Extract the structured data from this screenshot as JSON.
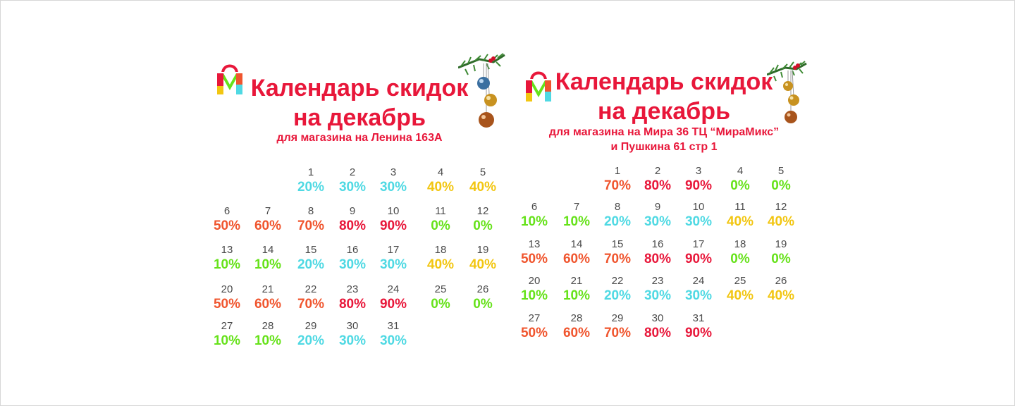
{
  "colors": {
    "title": "#e8173a",
    "d0": "#66e21a",
    "d10": "#66e21a",
    "d20": "#4fd9e3",
    "d30": "#4fd9e3",
    "d40": "#f2c611",
    "d50": "#f0552e",
    "d60": "#f0552e",
    "d70": "#f0552e",
    "d80": "#e8173a",
    "d90": "#e8173a"
  },
  "left_calendar": {
    "title_line1": "Календарь скидок",
    "title_line2": "на декабрь",
    "subtitle_line1": "для магазина на Ленина 163А",
    "logo_icon": "shopping-bag-logo",
    "decoration_icon": "christmas-ornaments",
    "days": [
      {
        "day": "1",
        "discount": "20%"
      },
      {
        "day": "2",
        "discount": "30%"
      },
      {
        "day": "3",
        "discount": "30%"
      },
      {
        "day": "4",
        "discount": "40%"
      },
      {
        "day": "5",
        "discount": "40%"
      },
      {
        "day": "6",
        "discount": "50%"
      },
      {
        "day": "7",
        "discount": "60%"
      },
      {
        "day": "8",
        "discount": "70%"
      },
      {
        "day": "9",
        "discount": "80%"
      },
      {
        "day": "10",
        "discount": "90%"
      },
      {
        "day": "11",
        "discount": "0%"
      },
      {
        "day": "12",
        "discount": "0%"
      },
      {
        "day": "13",
        "discount": "10%"
      },
      {
        "day": "14",
        "discount": "10%"
      },
      {
        "day": "15",
        "discount": "20%"
      },
      {
        "day": "16",
        "discount": "30%"
      },
      {
        "day": "17",
        "discount": "30%"
      },
      {
        "day": "18",
        "discount": "40%"
      },
      {
        "day": "19",
        "discount": "40%"
      },
      {
        "day": "20",
        "discount": "50%"
      },
      {
        "day": "21",
        "discount": "60%"
      },
      {
        "day": "22",
        "discount": "70%"
      },
      {
        "day": "23",
        "discount": "80%"
      },
      {
        "day": "24",
        "discount": "90%"
      },
      {
        "day": "25",
        "discount": "0%"
      },
      {
        "day": "26",
        "discount": "0%"
      },
      {
        "day": "27",
        "discount": "10%"
      },
      {
        "day": "28",
        "discount": "10%"
      },
      {
        "day": "29",
        "discount": "20%"
      },
      {
        "day": "30",
        "discount": "30%"
      },
      {
        "day": "31",
        "discount": "30%"
      }
    ]
  },
  "right_calendar": {
    "title_line1": "Календарь скидок",
    "title_line2": "на декабрь",
    "subtitle_line1": "для магазина на Мира 36 ТЦ “МираМикс”",
    "subtitle_line2": "и Пушкина 61 стр 1",
    "logo_icon": "shopping-bag-logo",
    "decoration_icon": "christmas-ornaments",
    "days": [
      {
        "day": "1",
        "discount": "70%"
      },
      {
        "day": "2",
        "discount": "80%"
      },
      {
        "day": "3",
        "discount": "90%"
      },
      {
        "day": "4",
        "discount": "0%"
      },
      {
        "day": "5",
        "discount": "0%"
      },
      {
        "day": "6",
        "discount": "10%"
      },
      {
        "day": "7",
        "discount": "10%"
      },
      {
        "day": "8",
        "discount": "20%"
      },
      {
        "day": "9",
        "discount": "30%"
      },
      {
        "day": "10",
        "discount": "30%"
      },
      {
        "day": "11",
        "discount": "40%"
      },
      {
        "day": "12",
        "discount": "40%"
      },
      {
        "day": "13",
        "discount": "50%"
      },
      {
        "day": "14",
        "discount": "60%"
      },
      {
        "day": "15",
        "discount": "70%"
      },
      {
        "day": "16",
        "discount": "80%"
      },
      {
        "day": "17",
        "discount": "90%"
      },
      {
        "day": "18",
        "discount": "0%"
      },
      {
        "day": "19",
        "discount": "0%"
      },
      {
        "day": "20",
        "discount": "10%"
      },
      {
        "day": "21",
        "discount": "10%"
      },
      {
        "day": "22",
        "discount": "20%"
      },
      {
        "day": "23",
        "discount": "30%"
      },
      {
        "day": "24",
        "discount": "30%"
      },
      {
        "day": "25",
        "discount": "40%"
      },
      {
        "day": "26",
        "discount": "40%"
      },
      {
        "day": "27",
        "discount": "50%"
      },
      {
        "day": "28",
        "discount": "60%"
      },
      {
        "day": "29",
        "discount": "70%"
      },
      {
        "day": "30",
        "discount": "80%"
      },
      {
        "day": "31",
        "discount": "90%"
      }
    ]
  }
}
